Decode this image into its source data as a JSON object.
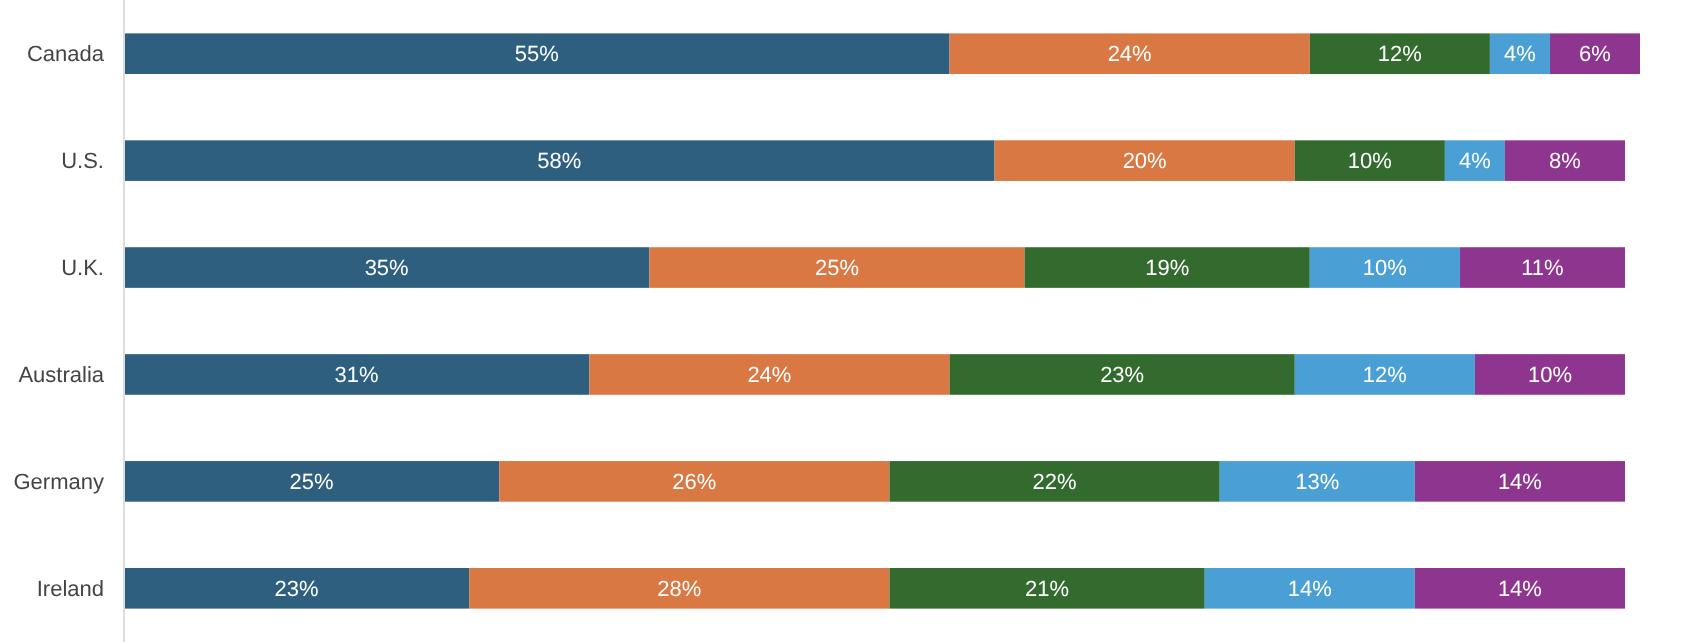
{
  "chart_data": {
    "type": "bar",
    "orientation": "horizontal",
    "stacked": true,
    "tick_labels": "y",
    "categories": [
      "Canada",
      "U.S.",
      "U.K.",
      "Australia",
      "Germany",
      "Ireland"
    ],
    "series": [
      {
        "color": "#2e5f7f",
        "values": [
          55,
          58,
          35,
          31,
          25,
          23
        ],
        "value_labels": [
          "55%",
          "58%",
          "35%",
          "31%",
          "25%",
          "23%"
        ]
      },
      {
        "color": "#d97842",
        "values": [
          24,
          20,
          25,
          24,
          26,
          28
        ],
        "value_labels": [
          "24%",
          "20%",
          "25%",
          "24%",
          "26%",
          "28%"
        ]
      },
      {
        "color": "#336a2e",
        "values": [
          12,
          10,
          19,
          23,
          22,
          21
        ],
        "value_labels": [
          "12%",
          "10%",
          "19%",
          "23%",
          "22%",
          "21%"
        ]
      },
      {
        "color": "#4a9fd5",
        "values": [
          4,
          4,
          10,
          12,
          13,
          14
        ],
        "value_labels": [
          "4%",
          "4%",
          "10%",
          "12%",
          "13%",
          "14%"
        ]
      },
      {
        "color": "#8e3590",
        "values": [
          6,
          8,
          11,
          10,
          14,
          14
        ],
        "value_labels": [
          "6%",
          "8%",
          "11%",
          "10%",
          "14%",
          "14%"
        ]
      }
    ]
  }
}
